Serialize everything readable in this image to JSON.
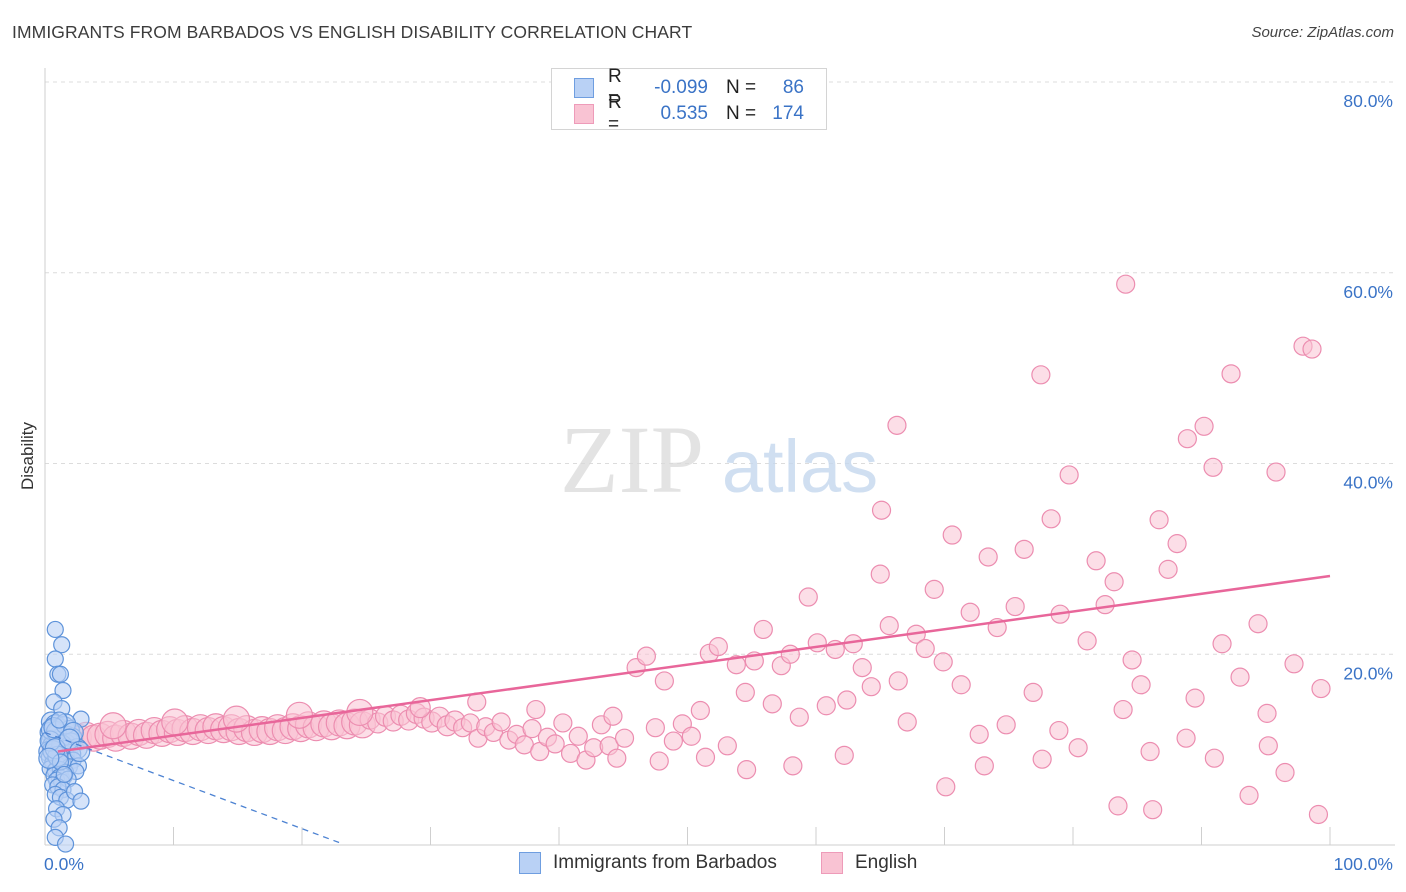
{
  "title": "IMMIGRANTS FROM BARBADOS VS ENGLISH DISABILITY CORRELATION CHART",
  "source": "Source: ZipAtlas.com",
  "watermark": {
    "zip": "ZIP",
    "atlas": "atlas"
  },
  "colors": {
    "blue_fill": "#b9d1f5",
    "blue_stroke": "#5e93da",
    "blue_line": "#4c82d2",
    "pink_fill": "#f9c3d3",
    "pink_stroke": "#ec8db0",
    "pink_line": "#e8669a",
    "axis_text": "#3a73c6",
    "grid": "#dcdcdc"
  },
  "legend": {
    "rows": [
      {
        "r_label": "R =",
        "r_value": "-0.099",
        "n_label": "N =",
        "n_value": "86",
        "series": "blue"
      },
      {
        "r_label": "R =",
        "r_value": "0.535",
        "n_label": "N =",
        "n_value": "174",
        "series": "pink"
      }
    ]
  },
  "bottom_legend": [
    {
      "label": "Immigrants from Barbados",
      "series": "blue"
    },
    {
      "label": "English",
      "series": "pink"
    }
  ],
  "chart_data": {
    "type": "scatter",
    "title": "IMMIGRANTS FROM BARBADOS VS ENGLISH DISABILITY CORRELATION CHART",
    "xlabel": "",
    "ylabel": "Disability",
    "xlim": [
      0,
      100
    ],
    "ylim": [
      0,
      80
    ],
    "x_tick_labels": [
      "0.0%",
      "100.0%"
    ],
    "y_ticks": [
      20,
      40,
      60,
      80
    ],
    "y_tick_labels": [
      "20.0%",
      "40.0%",
      "60.0%",
      "80.0%"
    ],
    "grid": true,
    "series": [
      {
        "name": "Immigrants from Barbados",
        "color": "blue",
        "trend": {
          "x": [
            0,
            23
          ],
          "y": [
            11.8,
            0.2
          ],
          "style": "dashed"
        },
        "points": [
          [
            0.8,
            22.6
          ],
          [
            1.3,
            21.0
          ],
          [
            0.8,
            19.5
          ],
          [
            1.0,
            17.9
          ],
          [
            1.2,
            17.9
          ],
          [
            1.4,
            16.2
          ],
          [
            0.7,
            15.0
          ],
          [
            1.3,
            14.3
          ],
          [
            2.8,
            13.2
          ],
          [
            0.5,
            12.9
          ],
          [
            0.8,
            12.6
          ],
          [
            1.1,
            12.2
          ],
          [
            1.5,
            12.4
          ],
          [
            1.9,
            12.0
          ],
          [
            0.4,
            11.8
          ],
          [
            0.7,
            11.5
          ],
          [
            1.0,
            11.7
          ],
          [
            1.3,
            11.3
          ],
          [
            1.7,
            11.4
          ],
          [
            2.1,
            11.2
          ],
          [
            0.5,
            11.0
          ],
          [
            0.9,
            10.8
          ],
          [
            1.2,
            10.9
          ],
          [
            1.6,
            10.6
          ],
          [
            2.0,
            10.7
          ],
          [
            0.6,
            10.4
          ],
          [
            1.0,
            10.2
          ],
          [
            1.4,
            10.3
          ],
          [
            1.8,
            10.0
          ],
          [
            2.5,
            10.1
          ],
          [
            0.3,
            9.8
          ],
          [
            0.7,
            9.6
          ],
          [
            1.1,
            9.7
          ],
          [
            1.5,
            9.4
          ],
          [
            2.0,
            9.5
          ],
          [
            0.5,
            9.2
          ],
          [
            0.9,
            9.0
          ],
          [
            1.3,
            9.1
          ],
          [
            1.7,
            8.8
          ],
          [
            2.2,
            8.9
          ],
          [
            0.6,
            8.6
          ],
          [
            1.0,
            8.4
          ],
          [
            1.4,
            8.5
          ],
          [
            1.9,
            8.2
          ],
          [
            2.6,
            8.3
          ],
          [
            0.4,
            8.0
          ],
          [
            0.8,
            7.8
          ],
          [
            1.2,
            7.9
          ],
          [
            1.6,
            7.6
          ],
          [
            2.4,
            7.7
          ],
          [
            0.7,
            7.3
          ],
          [
            1.1,
            7.1
          ],
          [
            1.5,
            7.2
          ],
          [
            0.9,
            6.8
          ],
          [
            1.3,
            6.6
          ],
          [
            1.8,
            6.9
          ],
          [
            0.6,
            6.3
          ],
          [
            1.0,
            6.1
          ],
          [
            1.4,
            5.8
          ],
          [
            0.8,
            5.3
          ],
          [
            1.2,
            5.0
          ],
          [
            1.7,
            4.7
          ],
          [
            0.9,
            3.8
          ],
          [
            1.4,
            3.2
          ],
          [
            0.7,
            2.7
          ],
          [
            1.1,
            1.8
          ],
          [
            0.8,
            0.8
          ],
          [
            1.6,
            0.1
          ],
          [
            2.3,
            5.6
          ],
          [
            2.8,
            4.6
          ],
          [
            0.5,
            12.1
          ],
          [
            0.9,
            11.9
          ],
          [
            1.3,
            10.5
          ],
          [
            0.6,
            9.9
          ],
          [
            1.0,
            9.3
          ],
          [
            1.6,
            12.7
          ],
          [
            2.2,
            11.8
          ],
          [
            0.4,
            10.9
          ],
          [
            0.8,
            10.1
          ],
          [
            1.2,
            8.7
          ],
          [
            1.5,
            7.4
          ],
          [
            0.7,
            12.3
          ],
          [
            1.1,
            13.1
          ],
          [
            1.9,
            11.1
          ],
          [
            0.3,
            9.1
          ],
          [
            2.7,
            9.8
          ]
        ]
      },
      {
        "name": "English",
        "color": "pink",
        "trend": {
          "x": [
            1.0,
            100.0
          ],
          "y": [
            9.8,
            28.2
          ],
          "style": "solid"
        },
        "points": [
          [
            0.8,
            10.2
          ],
          [
            1.5,
            10.6
          ],
          [
            2.0,
            11.0
          ],
          [
            2.6,
            11.3
          ],
          [
            3.2,
            11.5
          ],
          [
            3.8,
            11.2
          ],
          [
            4.3,
            11.4
          ],
          [
            4.9,
            11.6
          ],
          [
            5.5,
            11.2
          ],
          [
            6.1,
            11.7
          ],
          [
            6.7,
            11.4
          ],
          [
            7.3,
            11.8
          ],
          [
            7.9,
            11.5
          ],
          [
            8.5,
            12.0
          ],
          [
            9.1,
            11.7
          ],
          [
            9.7,
            12.1
          ],
          [
            10.3,
            11.8
          ],
          [
            10.9,
            12.2
          ],
          [
            11.5,
            11.9
          ],
          [
            12.1,
            12.3
          ],
          [
            12.7,
            12.0
          ],
          [
            13.3,
            12.4
          ],
          [
            13.9,
            12.1
          ],
          [
            14.5,
            12.3
          ],
          [
            15.1,
            11.9
          ],
          [
            15.7,
            12.2
          ],
          [
            16.3,
            11.8
          ],
          [
            16.9,
            12.1
          ],
          [
            17.5,
            11.9
          ],
          [
            18.1,
            12.3
          ],
          [
            18.7,
            12.0
          ],
          [
            19.3,
            12.4
          ],
          [
            19.9,
            12.2
          ],
          [
            20.5,
            12.6
          ],
          [
            21.1,
            12.3
          ],
          [
            21.7,
            12.7
          ],
          [
            22.3,
            12.4
          ],
          [
            22.9,
            12.8
          ],
          [
            23.5,
            12.5
          ],
          [
            24.1,
            12.9
          ],
          [
            24.7,
            12.6
          ],
          [
            25.3,
            13.2
          ],
          [
            25.9,
            12.8
          ],
          [
            26.5,
            13.5
          ],
          [
            27.1,
            13.0
          ],
          [
            27.7,
            13.6
          ],
          [
            28.3,
            13.1
          ],
          [
            28.9,
            13.8
          ],
          [
            29.5,
            13.3
          ],
          [
            30.1,
            12.9
          ],
          [
            30.7,
            13.4
          ],
          [
            31.3,
            12.5
          ],
          [
            31.9,
            13.0
          ],
          [
            32.5,
            12.3
          ],
          [
            33.1,
            12.8
          ],
          [
            33.7,
            11.2
          ],
          [
            34.3,
            12.4
          ],
          [
            34.9,
            11.8
          ],
          [
            35.5,
            12.9
          ],
          [
            36.1,
            11.0
          ],
          [
            36.7,
            11.6
          ],
          [
            37.3,
            10.5
          ],
          [
            37.9,
            12.2
          ],
          [
            38.5,
            9.8
          ],
          [
            39.1,
            11.3
          ],
          [
            39.7,
            10.6
          ],
          [
            40.3,
            12.8
          ],
          [
            40.9,
            9.6
          ],
          [
            41.5,
            11.4
          ],
          [
            42.1,
            8.9
          ],
          [
            42.7,
            10.2
          ],
          [
            43.3,
            12.6
          ],
          [
            43.9,
            10.4
          ],
          [
            44.5,
            9.1
          ],
          [
            45.1,
            11.2
          ],
          [
            46.0,
            18.6
          ],
          [
            46.8,
            19.8
          ],
          [
            47.5,
            12.3
          ],
          [
            48.2,
            17.2
          ],
          [
            48.9,
            10.9
          ],
          [
            49.6,
            12.7
          ],
          [
            50.3,
            11.4
          ],
          [
            51.0,
            14.1
          ],
          [
            51.7,
            20.1
          ],
          [
            52.4,
            20.8
          ],
          [
            53.1,
            10.4
          ],
          [
            53.8,
            18.9
          ],
          [
            54.5,
            16.0
          ],
          [
            55.2,
            19.3
          ],
          [
            55.9,
            22.6
          ],
          [
            56.6,
            14.8
          ],
          [
            57.3,
            18.8
          ],
          [
            58.0,
            20.0
          ],
          [
            58.7,
            13.4
          ],
          [
            59.4,
            26.0
          ],
          [
            60.1,
            21.2
          ],
          [
            60.8,
            14.6
          ],
          [
            61.5,
            20.5
          ],
          [
            62.2,
            9.4
          ],
          [
            62.9,
            21.1
          ],
          [
            63.6,
            18.6
          ],
          [
            64.3,
            16.6
          ],
          [
            65.0,
            28.4
          ],
          [
            65.7,
            23.0
          ],
          [
            66.4,
            17.2
          ],
          [
            67.1,
            12.9
          ],
          [
            67.8,
            22.1
          ],
          [
            68.5,
            20.6
          ],
          [
            69.2,
            26.8
          ],
          [
            69.9,
            19.2
          ],
          [
            70.6,
            32.5
          ],
          [
            71.3,
            16.8
          ],
          [
            72.0,
            24.4
          ],
          [
            72.7,
            11.6
          ],
          [
            73.4,
            30.2
          ],
          [
            74.1,
            22.8
          ],
          [
            74.8,
            12.6
          ],
          [
            75.5,
            25.0
          ],
          [
            76.2,
            31.0
          ],
          [
            76.9,
            16.0
          ],
          [
            77.6,
            9.0
          ],
          [
            78.3,
            34.2
          ],
          [
            79.0,
            24.2
          ],
          [
            79.7,
            38.8
          ],
          [
            80.4,
            10.2
          ],
          [
            81.1,
            21.4
          ],
          [
            81.8,
            29.8
          ],
          [
            82.5,
            25.2
          ],
          [
            83.2,
            27.6
          ],
          [
            83.9,
            14.2
          ],
          [
            84.6,
            19.4
          ],
          [
            85.3,
            16.8
          ],
          [
            86.0,
            9.8
          ],
          [
            86.7,
            34.1
          ],
          [
            87.4,
            28.9
          ],
          [
            88.1,
            31.6
          ],
          [
            88.8,
            11.2
          ],
          [
            89.5,
            15.4
          ],
          [
            90.2,
            43.9
          ],
          [
            90.9,
            39.6
          ],
          [
            91.6,
            21.1
          ],
          [
            92.3,
            49.4
          ],
          [
            93.0,
            17.6
          ],
          [
            93.7,
            5.2
          ],
          [
            94.4,
            23.2
          ],
          [
            95.1,
            13.8
          ],
          [
            95.8,
            39.1
          ],
          [
            96.5,
            7.6
          ],
          [
            97.2,
            19.0
          ],
          [
            97.9,
            52.3
          ],
          [
            98.6,
            52.0
          ],
          [
            99.3,
            16.4
          ],
          [
            84.1,
            58.8
          ],
          [
            77.5,
            49.3
          ],
          [
            65.1,
            35.1
          ],
          [
            88.9,
            42.6
          ],
          [
            66.3,
            44.0
          ],
          [
            91.0,
            9.1
          ],
          [
            99.1,
            3.2
          ],
          [
            95.2,
            10.4
          ],
          [
            86.2,
            3.7
          ],
          [
            83.5,
            4.1
          ],
          [
            78.9,
            12.0
          ],
          [
            73.1,
            8.3
          ],
          [
            70.1,
            6.1
          ],
          [
            62.4,
            15.2
          ],
          [
            58.2,
            8.3
          ],
          [
            54.6,
            7.9
          ],
          [
            51.4,
            9.2
          ],
          [
            47.8,
            8.8
          ],
          [
            44.2,
            13.5
          ],
          [
            38.2,
            14.2
          ],
          [
            33.6,
            15.0
          ],
          [
            29.2,
            14.4
          ],
          [
            24.5,
            13.9
          ],
          [
            19.8,
            13.6
          ],
          [
            14.9,
            13.2
          ],
          [
            10.1,
            12.9
          ],
          [
            5.3,
            12.5
          ]
        ]
      }
    ]
  }
}
